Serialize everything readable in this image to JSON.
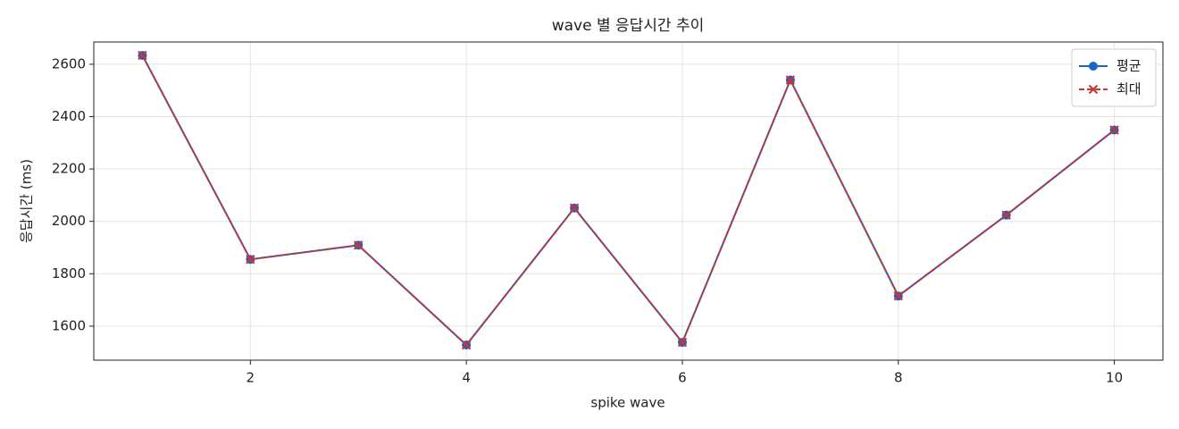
{
  "chart_data": {
    "type": "line",
    "title": "wave 별 응답시간 추이",
    "x_label": "spike wave",
    "y_label": "응답시간 (ms)",
    "x": [
      1,
      2,
      3,
      4,
      5,
      6,
      7,
      8,
      9,
      10
    ],
    "series": [
      {
        "name": "평균",
        "color": "#1f63c0",
        "marker": "o",
        "linestyle": "solid",
        "values": [
          2634,
          1855,
          1909,
          1528,
          2051,
          1538,
          2540,
          1715,
          2024,
          2349
        ]
      },
      {
        "name": "최대",
        "color": "#cc3333",
        "marker": "x",
        "linestyle": "dashed",
        "values": [
          2634,
          1855,
          1909,
          1528,
          2051,
          1538,
          2540,
          1715,
          2024,
          2349
        ]
      }
    ],
    "xlim": [
      0.55,
      10.45
    ],
    "ylim": [
      1470,
      2685
    ],
    "xticks": [
      2,
      4,
      6,
      8,
      10
    ],
    "yticks": [
      1600,
      1800,
      2000,
      2200,
      2400,
      2600
    ],
    "grid": true,
    "legend": "upper right"
  }
}
